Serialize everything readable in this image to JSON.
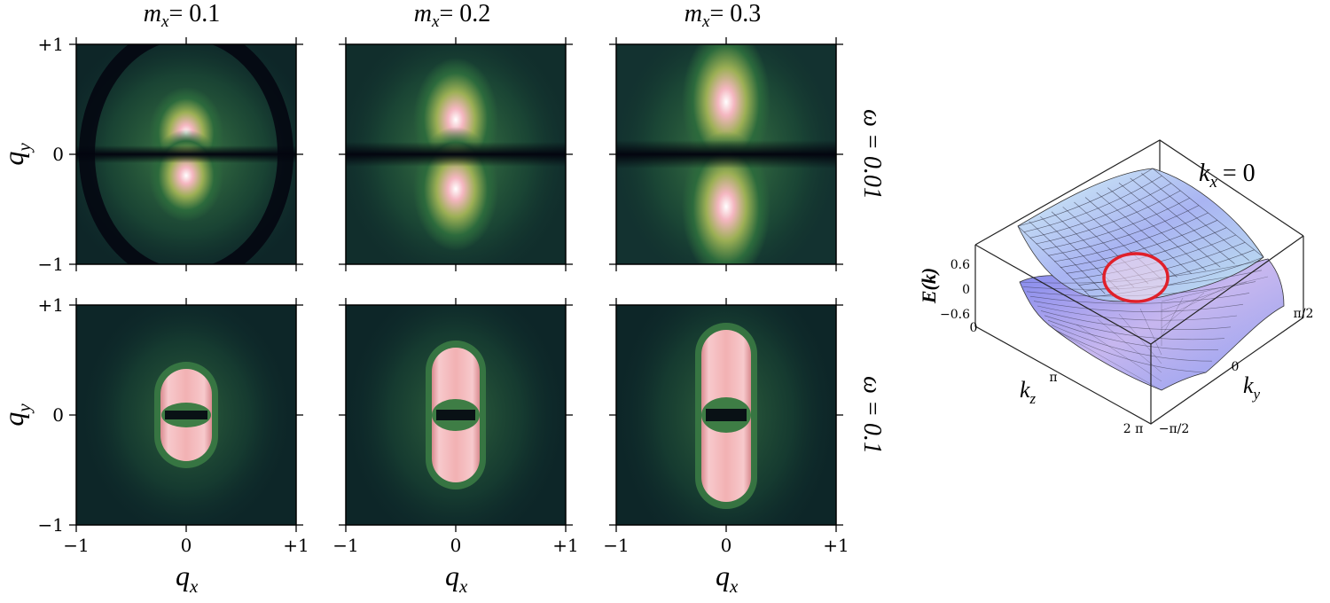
{
  "figure": {
    "columns": [
      {
        "label": "m",
        "sub": "x",
        "value": "= 0.1"
      },
      {
        "label": "m",
        "sub": "x",
        "value": "= 0.2"
      },
      {
        "label": "m",
        "sub": "x",
        "value": "= 0.3"
      }
    ],
    "rows": [
      {
        "label": "ω = 0.01"
      },
      {
        "label": "ω = 0.1"
      }
    ],
    "axes": {
      "x_label": "q",
      "x_sub": "x",
      "y_label": "q",
      "y_sub": "y",
      "x_ticks": [
        "−1",
        "0",
        "+1"
      ],
      "y_ticks": [
        "+1",
        "0",
        "−1"
      ]
    },
    "colormap": [
      "#03050f",
      "#0f2a2c",
      "#2d6a3a",
      "#8da64e",
      "#f2a9b3",
      "#ffffff"
    ],
    "surface": {
      "title": "k",
      "title_sub": "x",
      "title_value": "= 0",
      "z_label": "E(k)",
      "z_ticks": [
        "0.6",
        "0",
        "−0.6"
      ],
      "kz_label": "k",
      "kz_sub": "z",
      "kz_ticks": [
        "0",
        "π",
        "2 π"
      ],
      "ky_label": "k",
      "ky_sub": "y",
      "ky_ticks": [
        "−π/2",
        "0",
        "π/2"
      ],
      "colors": {
        "upper": "#9fe3ec",
        "lower": "#8e92f2",
        "mesh": "#2a2a3a",
        "ring": "#e0202a",
        "box": "#222222"
      }
    }
  }
}
